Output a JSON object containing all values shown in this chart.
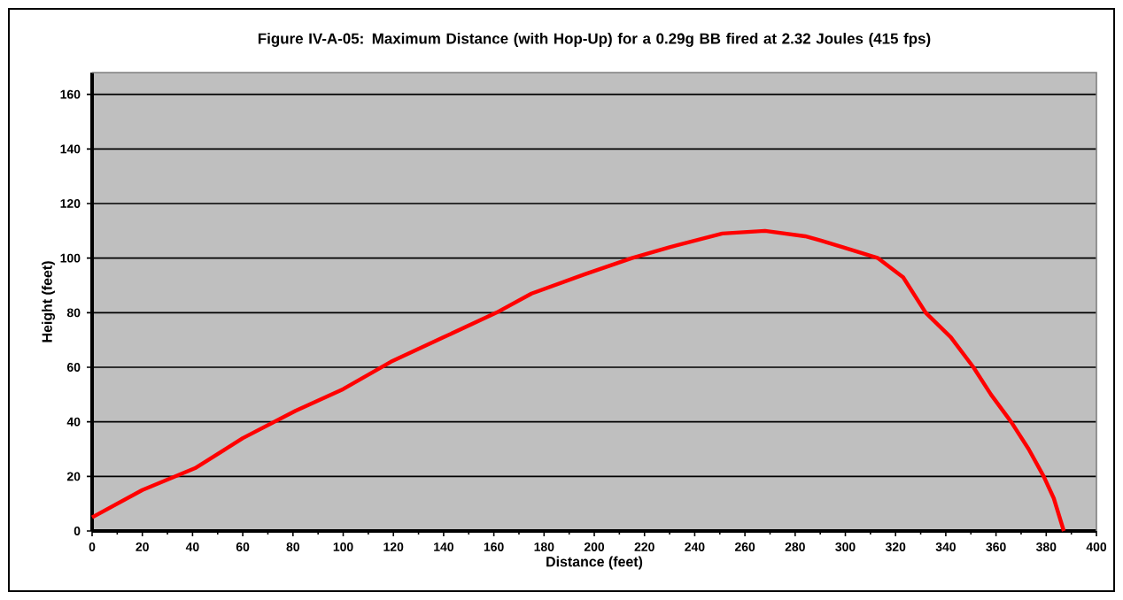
{
  "chart_data": {
    "type": "line",
    "title": "Figure IV-A-05:  Maximum Distance (with Hop-Up) for a 0.29g BB fired at 2.32 Joules (415 fps)",
    "xlabel": "Distance (feet)",
    "ylabel": "Height (feet)",
    "xlim": [
      0,
      400
    ],
    "xticks": [
      0,
      20,
      40,
      60,
      80,
      100,
      120,
      140,
      160,
      180,
      200,
      220,
      240,
      260,
      280,
      300,
      320,
      340,
      360,
      380,
      400
    ],
    "ylim": [
      0,
      168
    ],
    "yticks": [
      0,
      20,
      40,
      60,
      80,
      100,
      120,
      140,
      160
    ],
    "grid": "y",
    "marker": "none",
    "line_style": "solid",
    "series": [
      {
        "color": "#ff0000",
        "x": [
          0,
          20,
          41,
          60,
          81,
          100,
          119,
          140,
          161,
          175,
          196,
          215,
          230,
          251,
          268,
          284,
          290,
          299,
          313,
          323,
          332,
          342,
          351,
          358,
          366,
          373,
          379,
          383,
          387
        ],
        "values": [
          5,
          15,
          23,
          34,
          44,
          52,
          62,
          71,
          80,
          87,
          94,
          100,
          104,
          109,
          110,
          108,
          106.5,
          104,
          100,
          93,
          80,
          71,
          60,
          50,
          40,
          30,
          20,
          12,
          0
        ]
      }
    ]
  }
}
